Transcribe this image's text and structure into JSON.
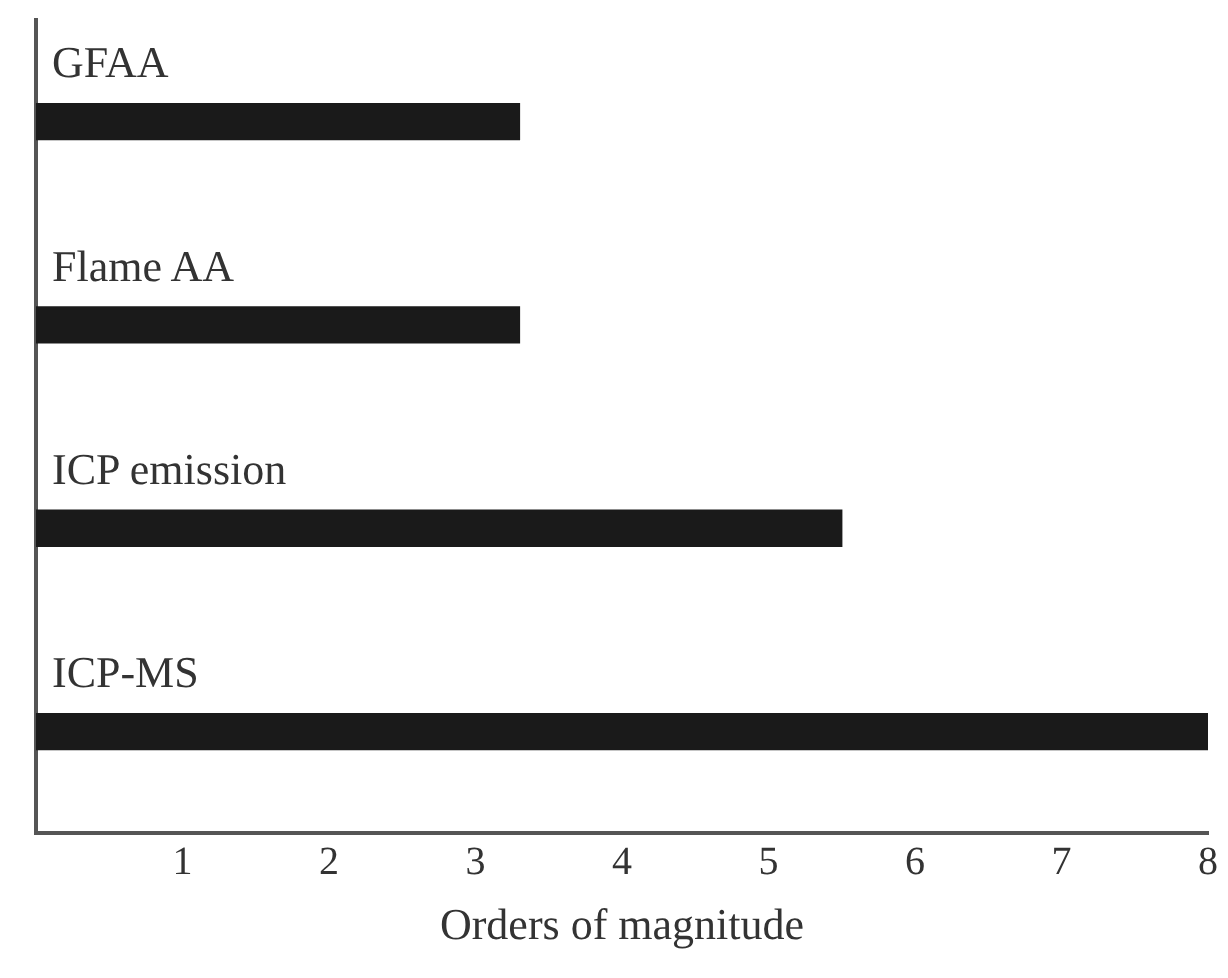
{
  "chart_data": {
    "type": "bar",
    "orientation": "horizontal",
    "xlabel": "Orders of magnitude",
    "categories": [
      "GFAA",
      "Flame AA",
      "ICP emission",
      "ICP-MS"
    ],
    "values": [
      3.3,
      3.3,
      5.5,
      8
    ],
    "color": "#1a1a1a",
    "xlim": [
      0,
      8
    ],
    "xticks": [
      1,
      2,
      3,
      4,
      5,
      6,
      7,
      8
    ],
    "grid": false,
    "legend": false
  }
}
